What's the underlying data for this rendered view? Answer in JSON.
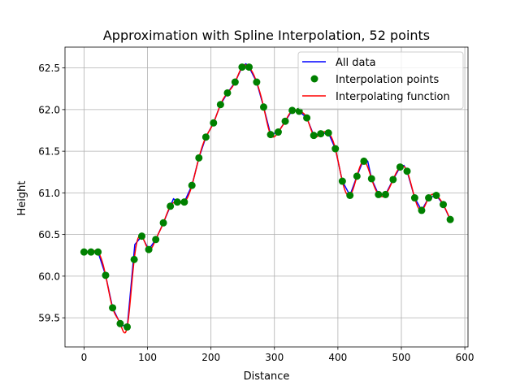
{
  "chart_data": {
    "type": "line",
    "title": "Approximation with Spline Interpolation, 52 points",
    "xlabel": "Distance",
    "ylabel": "Height",
    "xlim": [
      -30,
      605
    ],
    "ylim": [
      59.15,
      62.75
    ],
    "xticks": [
      0,
      100,
      200,
      300,
      400,
      500,
      600
    ],
    "yticks": [
      59.5,
      60.0,
      60.5,
      61.0,
      61.5,
      62.0,
      62.5
    ],
    "grid": true,
    "legend_position": "upper right",
    "series": [
      {
        "name": "All data",
        "style": "line",
        "color": "#0000ff",
        "x": [
          0,
          11,
          22,
          34,
          45,
          57,
          68,
          80,
          91,
          102,
          113,
          125,
          136,
          141,
          147,
          158,
          170,
          181,
          192,
          204,
          215,
          226,
          238,
          249,
          255,
          260,
          272,
          283,
          294,
          306,
          317,
          328,
          339,
          351,
          362,
          373,
          385,
          396,
          407,
          419,
          430,
          441,
          447,
          453,
          464,
          475,
          487,
          498,
          504,
          509,
          521,
          532,
          543,
          555,
          566,
          577
        ],
        "y": [
          60.29,
          60.29,
          60.29,
          60.01,
          59.62,
          59.43,
          59.38,
          60.38,
          60.48,
          60.32,
          60.44,
          60.64,
          60.84,
          60.93,
          60.89,
          60.89,
          61.09,
          61.42,
          61.67,
          61.84,
          62.06,
          62.2,
          62.33,
          62.51,
          62.55,
          62.51,
          62.33,
          62.03,
          61.7,
          61.73,
          61.86,
          61.99,
          61.98,
          61.9,
          61.69,
          61.71,
          61.72,
          61.53,
          61.14,
          60.97,
          61.2,
          61.41,
          61.38,
          61.17,
          60.98,
          60.98,
          61.16,
          61.31,
          61.33,
          61.26,
          60.94,
          60.79,
          60.94,
          60.97,
          60.86,
          60.68
        ]
      },
      {
        "name": "Interpolation points",
        "style": "markers",
        "color": "#008000",
        "x": [
          0,
          11,
          22,
          34,
          45,
          57,
          68,
          79,
          91,
          102,
          113,
          125,
          136,
          147,
          158,
          170,
          181,
          192,
          204,
          215,
          226,
          238,
          249,
          260,
          272,
          283,
          294,
          306,
          317,
          328,
          339,
          351,
          362,
          373,
          385,
          396,
          407,
          419,
          430,
          441,
          453,
          464,
          475,
          487,
          498,
          509,
          521,
          532,
          543,
          555,
          566,
          577
        ],
        "y": [
          60.29,
          60.29,
          60.29,
          60.01,
          59.62,
          59.43,
          59.39,
          60.2,
          60.48,
          60.32,
          60.44,
          60.64,
          60.84,
          60.89,
          60.89,
          61.09,
          61.42,
          61.67,
          61.84,
          62.06,
          62.2,
          62.33,
          62.51,
          62.51,
          62.33,
          62.03,
          61.7,
          61.73,
          61.86,
          61.99,
          61.98,
          61.9,
          61.69,
          61.71,
          61.72,
          61.53,
          61.14,
          60.97,
          61.2,
          61.38,
          61.17,
          60.98,
          60.98,
          61.16,
          61.31,
          61.26,
          60.94,
          60.79,
          60.94,
          60.97,
          60.86,
          60.68
        ]
      },
      {
        "name": "Interpolating function",
        "style": "spline",
        "color": "#ff0000"
      }
    ]
  },
  "colors": {
    "axes": "#000000",
    "grid": "#b0b0b0",
    "legend_border": "#cccccc"
  }
}
